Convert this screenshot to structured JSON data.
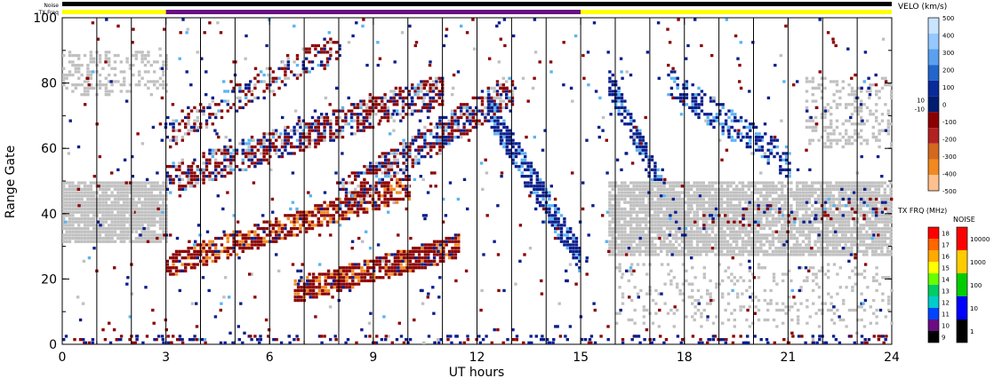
{
  "chart_data": {
    "type": "heatmap",
    "title": "",
    "xlabel": "UT hours",
    "ylabel": "Range Gate",
    "xlim": [
      0,
      24
    ],
    "ylim": [
      0,
      100
    ],
    "x_ticks": [
      "0",
      "3",
      "6",
      "9",
      "12",
      "15",
      "18",
      "21",
      "24"
    ],
    "y_ticks": [
      "0",
      "20",
      "40",
      "60",
      "80",
      "100"
    ],
    "x_tick_values": [
      0,
      3,
      6,
      9,
      12,
      15,
      18,
      21,
      24
    ],
    "y_tick_values": [
      0,
      20,
      40,
      60,
      80,
      100
    ],
    "scan_lines_ut": [
      1,
      2,
      4,
      5,
      7,
      8,
      10,
      11,
      13,
      14,
      16,
      17,
      19,
      20,
      22,
      23
    ],
    "top_bars": {
      "noise_label": "Noise",
      "txfreq_label": "TX Freq",
      "noise_color": "#000000",
      "txfreq_segments": [
        {
          "from": 0,
          "to": 3,
          "color": "#ffff00"
        },
        {
          "from": 3,
          "to": 15,
          "color": "#6a0d83"
        },
        {
          "from": 15,
          "to": 24,
          "color": "#ffff00"
        }
      ]
    },
    "velocity_scale": {
      "title": "VELO (km/s)",
      "ticks": [
        "500",
        "400",
        "300",
        "200",
        "100",
        "0",
        "-100",
        "-200",
        "-300",
        "-400",
        "-500"
      ],
      "side_ticks": [
        "10",
        "-10"
      ],
      "colors": [
        "#c8e4ff",
        "#94c8ff",
        "#5aa0f0",
        "#2266cc",
        "#0a2a9a",
        "#001c70",
        "#8b0000",
        "#b22222",
        "#d2691e",
        "#f08a20",
        "#ffc090"
      ]
    },
    "txfreq_scale": {
      "title": "TX FRQ (MHz)",
      "ticks": [
        "18",
        "17",
        "16",
        "15",
        "14",
        "13",
        "12",
        "11",
        "10",
        "9"
      ],
      "colors": [
        "#ff0000",
        "#ff6600",
        "#ffaa00",
        "#ffff00",
        "#66ff00",
        "#00cc66",
        "#00cccc",
        "#0044ff",
        "#6a0d83",
        "#000000"
      ]
    },
    "noise_scale": {
      "title": "NOISE",
      "ticks": [
        "10000",
        "1000",
        "100",
        "10",
        "1"
      ],
      "colors": [
        "#ff0000",
        "#ffcc00",
        "#00cc00",
        "#0000ff",
        "#000000"
      ]
    },
    "legend_placement": "right",
    "palette": {
      "ground_scatter": "#c0c0c0",
      "negative_velocity": "#8b0000",
      "positive_velocity": "#0a1e8c",
      "light_positive": "#5ab4f0",
      "orange": "#f08a20"
    },
    "regions": [
      {
        "name": "ground-scatter-early",
        "kind": "ground",
        "x": [
          0,
          3
        ],
        "y": [
          31,
          50
        ],
        "density": 0.9
      },
      {
        "name": "ground-scatter-top-early",
        "kind": "ground",
        "x": [
          0,
          3
        ],
        "y": [
          76,
          90
        ],
        "density": 0.35
      },
      {
        "name": "ground-scatter-late",
        "kind": "ground",
        "x": [
          15.8,
          24
        ],
        "y": [
          27,
          50
        ],
        "density": 0.85
      },
      {
        "name": "ground-scatter-late-low",
        "kind": "ground",
        "x": [
          16,
          24
        ],
        "y": [
          5,
          25
        ],
        "density": 0.15
      },
      {
        "name": "ground-scatter-evening",
        "kind": "ground",
        "x": [
          21.5,
          24
        ],
        "y": [
          60,
          82
        ],
        "density": 0.3
      },
      {
        "name": "band-upper-neg",
        "kind": "mixed",
        "x0": 3,
        "y0": 50,
        "x1": 11,
        "y1": 78,
        "width": 9,
        "density": 0.6
      },
      {
        "name": "band-upper2-neg",
        "kind": "mixed",
        "x0": 3,
        "y0": 64,
        "x1": 8,
        "y1": 92,
        "width": 8,
        "density": 0.45
      },
      {
        "name": "band-lower-neg",
        "kind": "neg",
        "x0": 3,
        "y0": 24,
        "x1": 10,
        "y1": 48,
        "width": 7,
        "density": 0.7
      },
      {
        "name": "band-mid-mixed",
        "kind": "mixed",
        "x0": 8,
        "y0": 45,
        "x1": 13,
        "y1": 78,
        "width": 10,
        "density": 0.6
      },
      {
        "name": "patch-red-low",
        "kind": "neg",
        "x0": 6.7,
        "y0": 16,
        "x1": 11.5,
        "y1": 30,
        "width": 7,
        "density": 0.85
      },
      {
        "name": "blue-descending",
        "kind": "pos",
        "x0": 12.3,
        "y0": 72,
        "x1": 15,
        "y1": 25,
        "width": 9,
        "density": 0.75
      },
      {
        "name": "blue-late-descending",
        "kind": "pos",
        "x0": 15.8,
        "y0": 80,
        "x1": 18.2,
        "y1": 28,
        "width": 8,
        "density": 0.75
      },
      {
        "name": "blue-upper-late",
        "kind": "pos",
        "x0": 17.5,
        "y0": 80,
        "x1": 21,
        "y1": 55,
        "width": 9,
        "density": 0.5
      },
      {
        "name": "mixed-late-ground",
        "kind": "mixed",
        "x0": 18,
        "y0": 38,
        "x1": 24,
        "y1": 42,
        "width": 6,
        "density": 0.2
      }
    ]
  }
}
